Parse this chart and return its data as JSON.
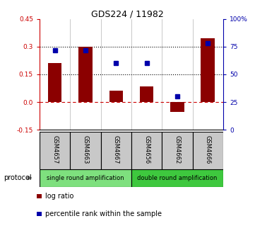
{
  "title": "GDS224 / 11982",
  "samples": [
    "GSM4657",
    "GSM4663",
    "GSM4667",
    "GSM4656",
    "GSM4662",
    "GSM4666"
  ],
  "log_ratios": [
    0.21,
    0.3,
    0.06,
    0.085,
    -0.055,
    0.345
  ],
  "percentile_ranks": [
    72,
    72,
    60,
    60,
    30,
    78
  ],
  "ylim_left": [
    -0.15,
    0.45
  ],
  "ylim_right": [
    0,
    100
  ],
  "yticks_left": [
    -0.15,
    0.0,
    0.15,
    0.3,
    0.45
  ],
  "yticks_right": [
    0,
    25,
    50,
    75,
    100
  ],
  "hlines": [
    0.15,
    0.3
  ],
  "bar_color": "#8B0000",
  "dot_color": "#0000AA",
  "left_tick_color": "#CC0000",
  "right_tick_color": "#0000AA",
  "zero_line_color": "#CC0000",
  "protocol_groups": [
    {
      "label": "single round amplification",
      "color": "#7EE07E",
      "start": 0,
      "end": 3
    },
    {
      "label": "double round amplification",
      "color": "#3EC83E",
      "start": 3,
      "end": 6
    }
  ],
  "legend_items": [
    {
      "color": "#8B0000",
      "label": "log ratio"
    },
    {
      "color": "#0000AA",
      "label": "percentile rank within the sample"
    }
  ],
  "bar_width": 0.45,
  "title_fontsize": 9,
  "tick_fontsize": 6.5,
  "sample_fontsize": 6,
  "protocol_fontsize": 6,
  "legend_fontsize": 7
}
